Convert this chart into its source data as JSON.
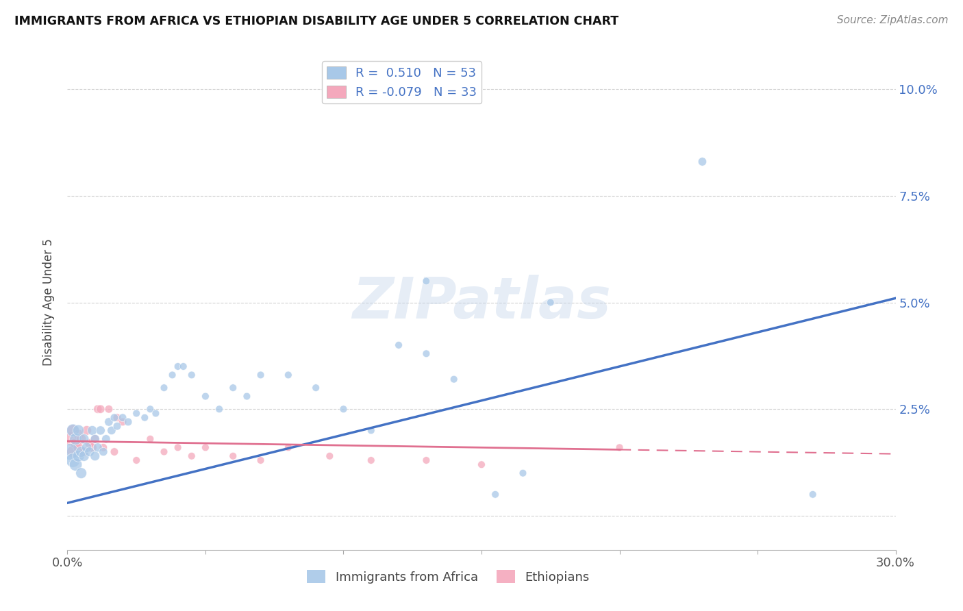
{
  "title": "IMMIGRANTS FROM AFRICA VS ETHIOPIAN DISABILITY AGE UNDER 5 CORRELATION CHART",
  "source": "Source: ZipAtlas.com",
  "ylabel": "Disability Age Under 5",
  "xlabel": "",
  "xlim": [
    0.0,
    0.3
  ],
  "ylim": [
    -0.008,
    0.108
  ],
  "yticks": [
    0.0,
    0.025,
    0.05,
    0.075,
    0.1
  ],
  "ytick_labels": [
    "",
    "2.5%",
    "5.0%",
    "7.5%",
    "10.0%"
  ],
  "xticks": [
    0.0,
    0.05,
    0.1,
    0.15,
    0.2,
    0.25,
    0.3
  ],
  "xtick_labels": [
    "0.0%",
    "",
    "",
    "",
    "",
    "",
    "30.0%"
  ],
  "blue_R": 0.51,
  "blue_N": 53,
  "pink_R": -0.079,
  "pink_N": 33,
  "blue_color": "#a8c8e8",
  "pink_color": "#f4a8bc",
  "line_blue": "#4472c4",
  "line_pink": "#e07090",
  "watermark": "ZIPatlas",
  "blue_line_x0": 0.0,
  "blue_line_y0": 0.003,
  "blue_line_x1": 0.3,
  "blue_line_y1": 0.051,
  "pink_line_x0": 0.0,
  "pink_line_y0": 0.0175,
  "pink_line_x1": 0.2,
  "pink_line_y1": 0.0155,
  "pink_line_dash_x0": 0.2,
  "pink_line_dash_y0": 0.0155,
  "pink_line_dash_x1": 0.3,
  "pink_line_dash_y1": 0.0145,
  "blue_scatter_x": [
    0.001,
    0.002,
    0.002,
    0.003,
    0.003,
    0.004,
    0.004,
    0.005,
    0.005,
    0.006,
    0.006,
    0.007,
    0.008,
    0.009,
    0.01,
    0.01,
    0.011,
    0.012,
    0.013,
    0.014,
    0.015,
    0.016,
    0.017,
    0.018,
    0.02,
    0.022,
    0.025,
    0.028,
    0.03,
    0.032,
    0.035,
    0.038,
    0.04,
    0.042,
    0.045,
    0.05,
    0.055,
    0.06,
    0.065,
    0.07,
    0.08,
    0.09,
    0.1,
    0.11,
    0.12,
    0.13,
    0.14,
    0.155,
    0.165,
    0.175,
    0.13,
    0.23,
    0.27
  ],
  "blue_scatter_y": [
    0.015,
    0.013,
    0.02,
    0.012,
    0.018,
    0.014,
    0.02,
    0.015,
    0.01,
    0.014,
    0.018,
    0.016,
    0.015,
    0.02,
    0.014,
    0.018,
    0.016,
    0.02,
    0.015,
    0.018,
    0.022,
    0.02,
    0.023,
    0.021,
    0.023,
    0.022,
    0.024,
    0.023,
    0.025,
    0.024,
    0.03,
    0.033,
    0.035,
    0.035,
    0.033,
    0.028,
    0.025,
    0.03,
    0.028,
    0.033,
    0.033,
    0.03,
    0.025,
    0.02,
    0.04,
    0.038,
    0.032,
    0.005,
    0.01,
    0.05,
    0.055,
    0.083,
    0.005
  ],
  "pink_scatter_x": [
    0.001,
    0.002,
    0.002,
    0.003,
    0.004,
    0.004,
    0.005,
    0.006,
    0.007,
    0.008,
    0.009,
    0.01,
    0.011,
    0.012,
    0.013,
    0.015,
    0.017,
    0.018,
    0.02,
    0.025,
    0.03,
    0.035,
    0.04,
    0.045,
    0.05,
    0.06,
    0.07,
    0.08,
    0.095,
    0.11,
    0.13,
    0.15,
    0.2
  ],
  "pink_scatter_y": [
    0.018,
    0.015,
    0.02,
    0.017,
    0.019,
    0.016,
    0.018,
    0.015,
    0.02,
    0.017,
    0.016,
    0.018,
    0.025,
    0.025,
    0.016,
    0.025,
    0.015,
    0.023,
    0.022,
    0.013,
    0.018,
    0.015,
    0.016,
    0.014,
    0.016,
    0.014,
    0.013,
    0.016,
    0.014,
    0.013,
    0.013,
    0.012,
    0.016
  ],
  "blue_dot_sizes": [
    300,
    220,
    180,
    180,
    160,
    150,
    140,
    130,
    130,
    120,
    110,
    110,
    100,
    100,
    100,
    90,
    90,
    90,
    80,
    80,
    80,
    80,
    70,
    70,
    70,
    70,
    60,
    60,
    60,
    60,
    60,
    60,
    60,
    60,
    60,
    60,
    60,
    60,
    60,
    60,
    60,
    60,
    60,
    60,
    60,
    60,
    60,
    60,
    60,
    60,
    60,
    80,
    60
  ],
  "pink_dot_sizes": [
    200,
    160,
    150,
    130,
    120,
    120,
    110,
    100,
    100,
    90,
    90,
    80,
    80,
    80,
    70,
    70,
    70,
    70,
    70,
    60,
    60,
    60,
    60,
    60,
    60,
    60,
    60,
    60,
    60,
    60,
    60,
    60,
    60
  ]
}
